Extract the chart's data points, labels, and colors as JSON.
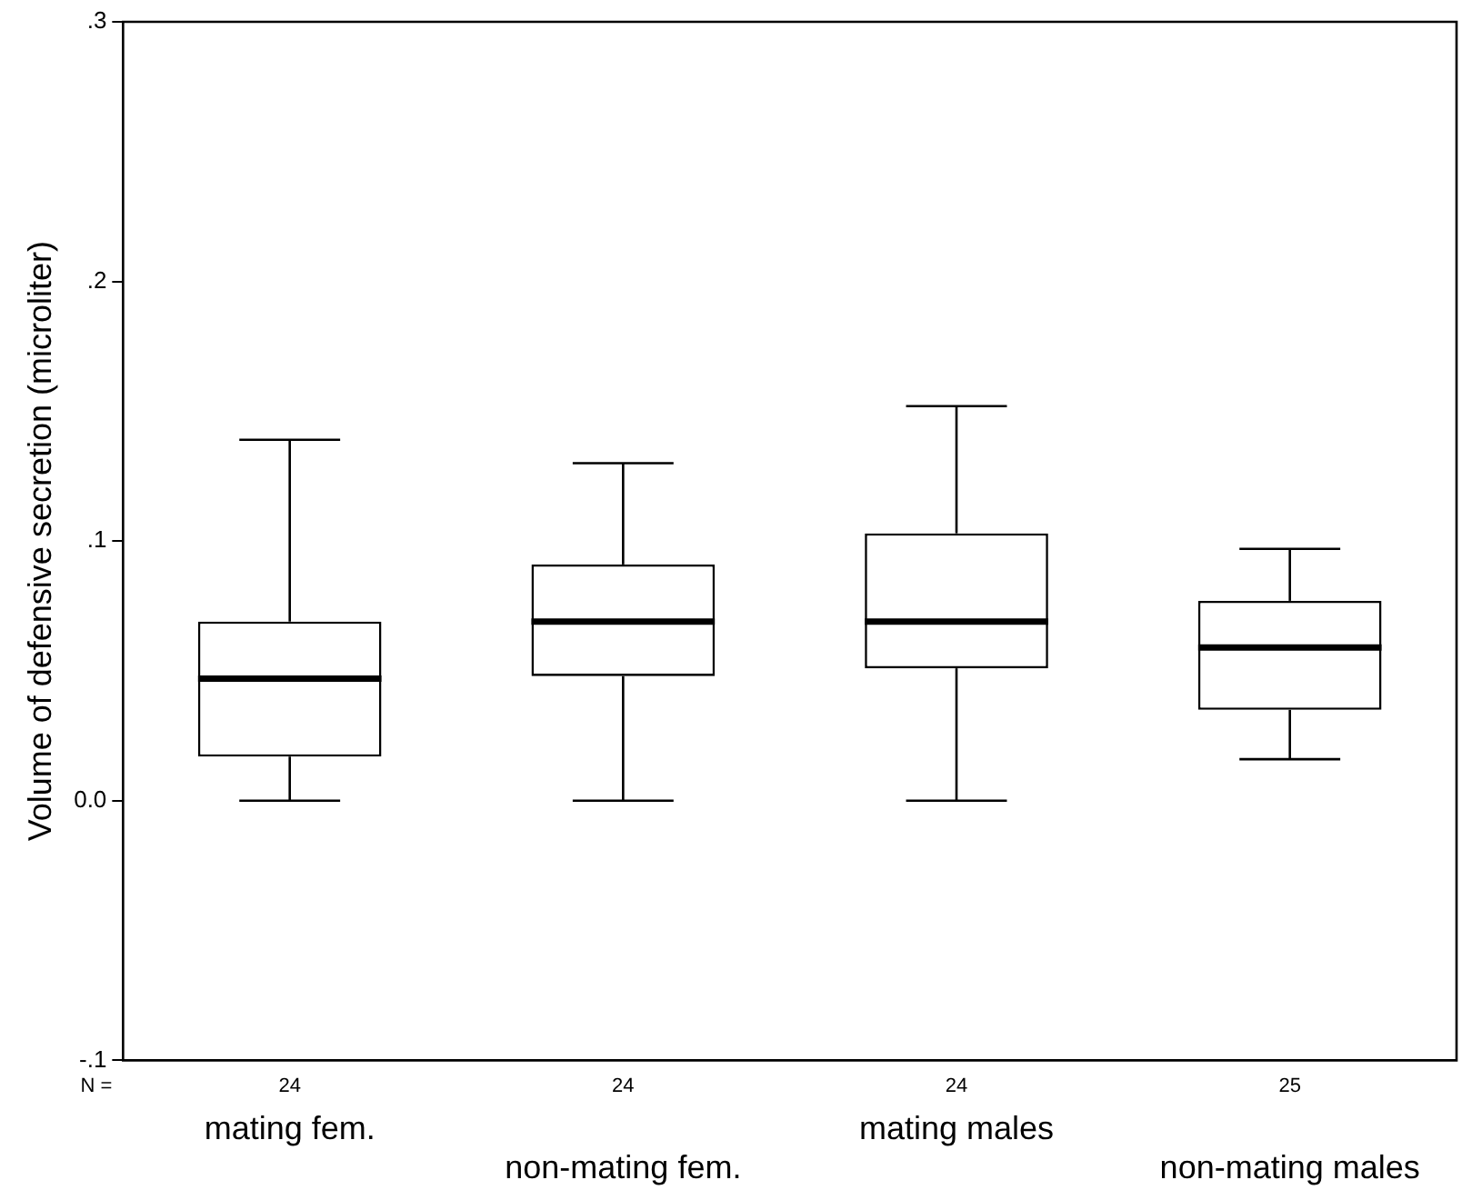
{
  "chart_data": {
    "type": "box",
    "ylabel": "Volume of defensive secretion (microliter)",
    "categories": [
      "mating fem.",
      "non-mating fem.",
      "mating males",
      "non-mating males"
    ],
    "boxes": [
      {
        "low": 0,
        "q1": 0.017,
        "median": 0.047,
        "q3": 0.069,
        "high": 0.139
      },
      {
        "low": 0,
        "q1": 0.048,
        "median": 0.069,
        "q3": 0.091,
        "high": 0.13
      },
      {
        "low": 0,
        "q1": 0.051,
        "median": 0.069,
        "q3": 0.103,
        "high": 0.152
      },
      {
        "low": 0.016,
        "q1": 0.035,
        "median": 0.059,
        "q3": 0.077,
        "high": 0.097
      }
    ],
    "color": "#000000",
    "ylim": [
      -0.1,
      0.3
    ],
    "yticks": [
      {
        "value": -0.1,
        "label": "-.1"
      },
      {
        "value": 0,
        "label": "0.0"
      },
      {
        "value": 0.1,
        "label": ".1"
      },
      {
        "value": 0.2,
        "label": ".2"
      },
      {
        "value": 0.3,
        "label": ".3"
      }
    ],
    "annotations": [
      "N =",
      "24",
      "24",
      "24",
      "25"
    ],
    "grid": false,
    "legend": false
  }
}
